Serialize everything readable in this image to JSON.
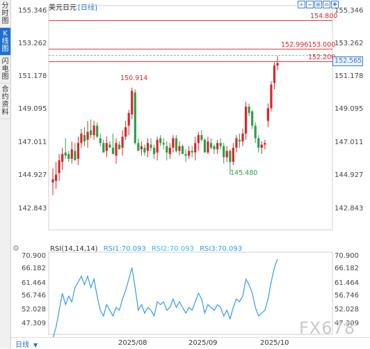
{
  "sidebar": {
    "tabs": [
      {
        "label": "分时图",
        "active": false
      },
      {
        "label": "K线图",
        "active": true
      },
      {
        "label": "闪电图",
        "active": false
      },
      {
        "label": "合约资料",
        "active": false
      }
    ]
  },
  "header": {
    "instrument": "美元日元",
    "period": "[日线]",
    "zoom_icons": [
      "zoom-in-icon",
      "zoom-out-icon",
      "fit-icon",
      "fullscreen-icon",
      "crosshair-icon"
    ]
  },
  "price_axis": {
    "labels": [
      "155.346",
      "153.262",
      "151.178",
      "149.095",
      "147.011",
      "144.927",
      "142.843"
    ]
  },
  "price_levels": {
    "level_154800": "154.800",
    "level_153000": "153.000",
    "level_152200": "152.200",
    "high_label": "152.996",
    "last_price": "152.565",
    "peak_label": "150.914",
    "trough_label": "145.480"
  },
  "rsi": {
    "title": "RSI(14,14,14)",
    "rsi1": "RSI1:70.093",
    "rsi2": "RSI2:70.093",
    "rsi3": "RSI3:70.093",
    "axis_labels": [
      "70.900",
      "66.182",
      "61.464",
      "56.746",
      "52.028",
      "47.309"
    ]
  },
  "time_axis": {
    "labels": [
      "2025/08",
      "2025/09",
      "2025/10"
    ]
  },
  "footer": {
    "period_select": "日线",
    "watermark": "FX678"
  },
  "colors": {
    "up": "#d8262a",
    "down": "#2e9e48",
    "rsi_line": "#3399ee",
    "accent": "#1f6fd1"
  },
  "chart_data": {
    "type": "candlestick",
    "title": "",
    "price_range": [
      142.0,
      156.2
    ],
    "rsi_range": [
      44.5,
      71.5
    ],
    "candles": [
      [
        145.0,
        144.2,
        145.2,
        145.9
      ],
      [
        145.1,
        144.6,
        145.5,
        146.3
      ],
      [
        145.6,
        145.1,
        146.4,
        146.8
      ],
      [
        146.3,
        145.8,
        146.8,
        147.2
      ],
      [
        146.9,
        146.5,
        146.7,
        147.8
      ],
      [
        146.8,
        146.3,
        146.5,
        147.0
      ],
      [
        146.5,
        146.2,
        147.1,
        147.6
      ],
      [
        147.0,
        146.6,
        146.4,
        147.5
      ],
      [
        146.5,
        146.1,
        147.5,
        147.9
      ],
      [
        147.5,
        147.2,
        148.1,
        148.4
      ],
      [
        148.0,
        147.3,
        147.6,
        148.5
      ],
      [
        147.7,
        147.2,
        148.2,
        148.9
      ],
      [
        148.3,
        147.8,
        148.0,
        149.0
      ],
      [
        148.0,
        147.7,
        148.6,
        148.9
      ],
      [
        148.6,
        147.8,
        147.9,
        148.8
      ],
      [
        147.8,
        147.3,
        147.5,
        148.1
      ],
      [
        147.5,
        146.9,
        146.9,
        147.7
      ],
      [
        147.0,
        146.6,
        147.5,
        147.9
      ],
      [
        147.4,
        147.2,
        147.2,
        147.6
      ],
      [
        147.2,
        146.8,
        146.8,
        148.1
      ],
      [
        146.7,
        146.2,
        147.5,
        147.8
      ],
      [
        147.4,
        147.1,
        147.1,
        147.6
      ],
      [
        147.2,
        146.7,
        147.9,
        148.3
      ],
      [
        147.9,
        147.7,
        148.5,
        148.9
      ],
      [
        148.6,
        148.0,
        149.4,
        149.6
      ],
      [
        149.3,
        149.0,
        150.8,
        151.0
      ],
      [
        150.7,
        147.4,
        147.5,
        150.9
      ],
      [
        147.5,
        147.1,
        147.0,
        147.8
      ],
      [
        147.1,
        146.7,
        147.3,
        147.6
      ],
      [
        147.2,
        146.7,
        146.9,
        147.4
      ],
      [
        147.0,
        146.6,
        147.5,
        147.8
      ],
      [
        147.4,
        147.0,
        147.2,
        147.8
      ],
      [
        147.2,
        146.5,
        146.8,
        147.4
      ],
      [
        146.9,
        146.4,
        147.7,
        147.9
      ],
      [
        147.8,
        147.3,
        147.5,
        148.0
      ],
      [
        147.5,
        147.1,
        147.4,
        147.8
      ],
      [
        147.3,
        146.4,
        146.9,
        147.6
      ],
      [
        146.8,
        146.5,
        147.2,
        147.5
      ],
      [
        147.2,
        146.9,
        147.8,
        148.0
      ],
      [
        147.8,
        146.9,
        147.0,
        148.0
      ],
      [
        147.0,
        146.7,
        147.3,
        147.6
      ],
      [
        147.3,
        146.9,
        146.8,
        147.4
      ],
      [
        146.8,
        146.3,
        146.7,
        147.1
      ],
      [
        146.7,
        146.5,
        147.0,
        147.3
      ],
      [
        147.0,
        146.6,
        146.9,
        147.3
      ],
      [
        146.9,
        146.4,
        147.5,
        147.9
      ],
      [
        147.5,
        147.0,
        148.0,
        148.2
      ],
      [
        148.0,
        147.6,
        147.7,
        148.3
      ],
      [
        147.7,
        146.9,
        146.9,
        147.8
      ],
      [
        146.9,
        146.8,
        147.6,
        147.9
      ],
      [
        147.5,
        147.1,
        147.2,
        147.8
      ],
      [
        147.3,
        146.8,
        147.1,
        147.4
      ],
      [
        147.1,
        146.8,
        147.5,
        147.7
      ],
      [
        147.5,
        147.1,
        147.3,
        147.8
      ],
      [
        147.3,
        146.2,
        146.6,
        147.5
      ],
      [
        146.6,
        146.3,
        147.0,
        147.3
      ],
      [
        147.0,
        145.5,
        146.3,
        147.1
      ],
      [
        146.3,
        146.1,
        147.2,
        147.5
      ],
      [
        147.2,
        146.9,
        147.8,
        148.0
      ],
      [
        147.7,
        147.2,
        147.6,
        148.1
      ],
      [
        147.6,
        147.3,
        148.1,
        148.4
      ],
      [
        148.1,
        147.7,
        149.8,
        150.1
      ],
      [
        149.8,
        149.2,
        149.4,
        150.0
      ],
      [
        149.5,
        148.4,
        148.6,
        149.6
      ],
      [
        148.6,
        147.5,
        147.8,
        148.8
      ],
      [
        147.8,
        146.9,
        147.2,
        148.0
      ],
      [
        147.2,
        146.8,
        147.4,
        147.6
      ],
      [
        147.4,
        147.1,
        147.5,
        147.7
      ],
      [
        148.9,
        148.5,
        149.7,
        150.0
      ],
      [
        149.7,
        149.5,
        151.2,
        151.4
      ],
      [
        151.3,
        150.9,
        152.4,
        152.6
      ],
      [
        152.4,
        152.1,
        152.56,
        153.0
      ]
    ],
    "rsi_series": [
      42.0,
      46.0,
      52.0,
      58.0,
      54.0,
      57.0,
      55.0,
      60.0,
      62.0,
      64.0,
      61.0,
      64.0,
      60.0,
      63.0,
      57.0,
      52.0,
      50.0,
      54.0,
      52.0,
      50.0,
      53.0,
      52.0,
      56.0,
      59.0,
      63.0,
      67.0,
      60.0,
      52.0,
      54.0,
      51.0,
      53.0,
      52.0,
      50.0,
      55.0,
      54.0,
      55.0,
      52.0,
      53.0,
      56.0,
      53.0,
      55.0,
      53.0,
      51.0,
      53.0,
      52.0,
      55.0,
      58.0,
      56.0,
      51.0,
      54.0,
      53.0,
      52.0,
      54.0,
      53.0,
      50.0,
      52.0,
      49.0,
      53.0,
      56.0,
      55.0,
      57.0,
      63.0,
      61.0,
      58.0,
      53.0,
      50.0,
      51.0,
      52.0,
      56.0,
      62.0,
      67.0,
      70.1
    ]
  }
}
